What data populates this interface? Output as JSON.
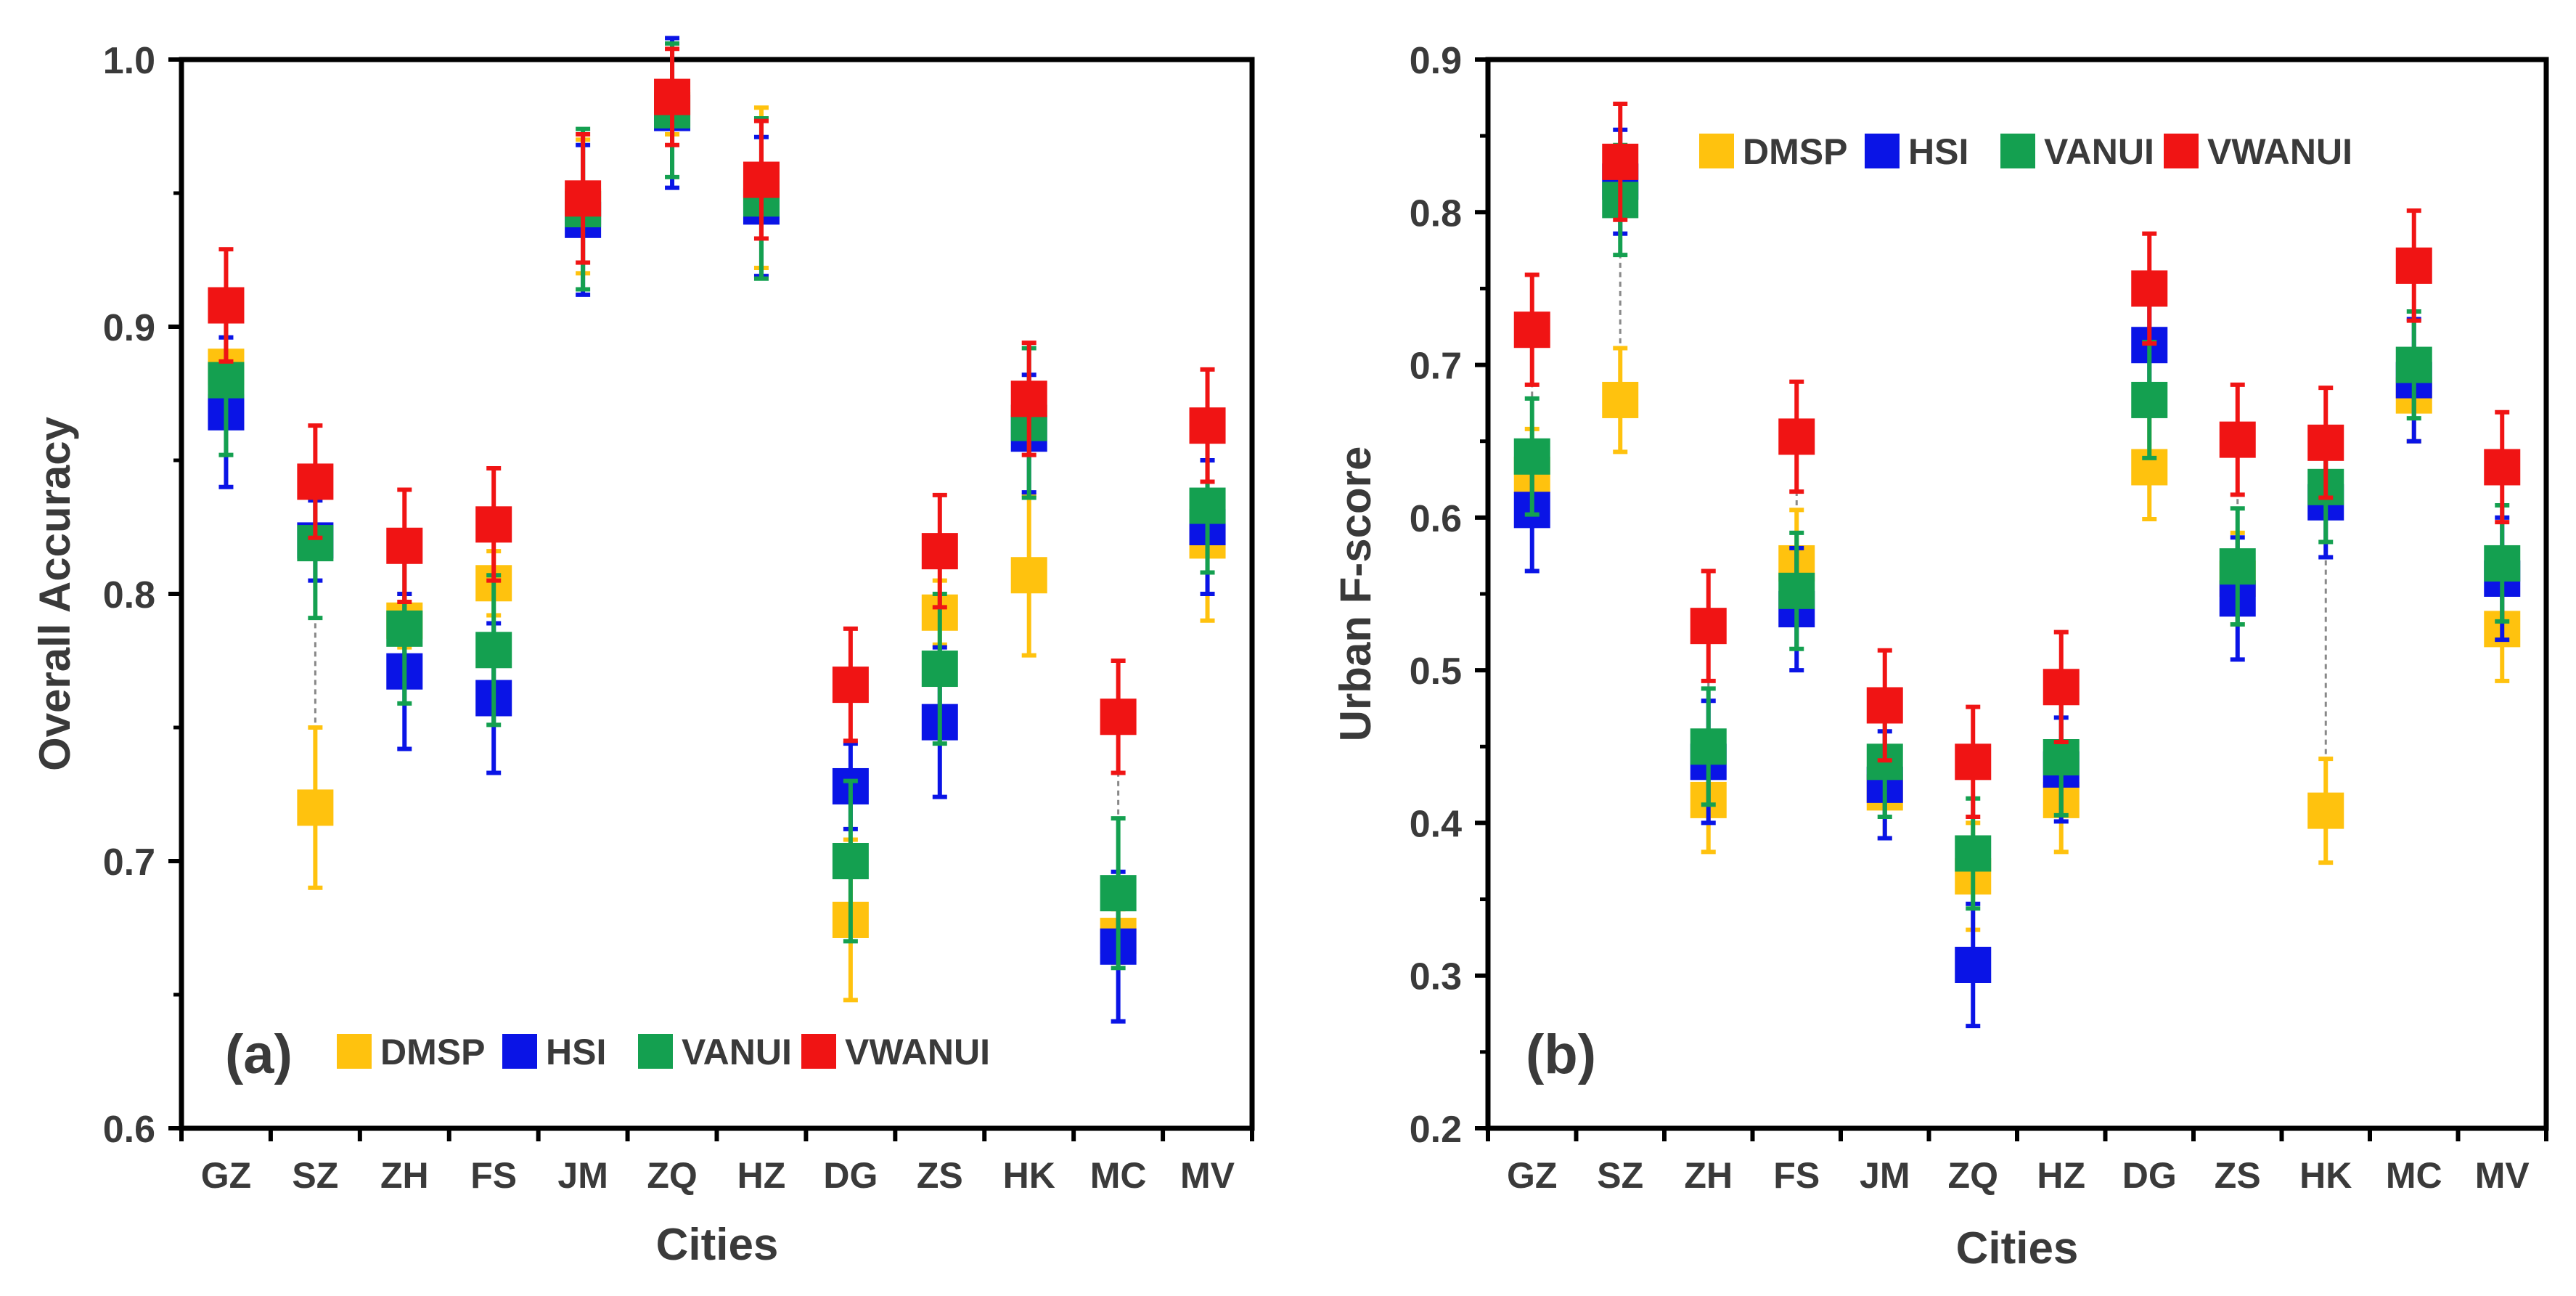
{
  "colors": {
    "DMSP": "#FFC20E",
    "HSI": "#0A14E6",
    "VANUI": "#14A050",
    "VWANUI": "#F01414",
    "axis": "#000000",
    "text": "#3a3a3a",
    "connector": "#888888"
  },
  "chart_data": [
    {
      "type": "scatter",
      "panel_label": "(a)",
      "xlabel": "Cities",
      "ylabel": "Overall Accuracy",
      "ylim": [
        0.6,
        1.0
      ],
      "ytick_values": [
        0.6,
        0.7,
        0.8,
        0.9,
        1.0
      ],
      "ytick_labels": [
        "0.6",
        "0.7",
        "0.8",
        "0.9",
        "1.0"
      ],
      "legend_position": "bottom-center",
      "categories": [
        "GZ",
        "SZ",
        "ZH",
        "FS",
        "JM",
        "ZQ",
        "HZ",
        "DG",
        "ZS",
        "HK",
        "MC",
        "MV"
      ],
      "series": [
        {
          "name": "DMSP",
          "values": [
            0.885,
            0.72,
            0.79,
            0.804,
            0.945,
            0.982,
            0.952,
            0.678,
            0.793,
            0.807,
            0.672,
            0.82
          ],
          "err": [
            0.02,
            0.03,
            0.01,
            0.012,
            0.025,
            0.01,
            0.03,
            0.03,
            0.012,
            0.03,
            0.01,
            0.03
          ]
        },
        {
          "name": "HSI",
          "values": [
            0.868,
            0.82,
            0.771,
            0.761,
            0.94,
            0.98,
            0.945,
            0.728,
            0.752,
            0.86,
            0.668,
            0.825
          ],
          "err": [
            0.028,
            0.015,
            0.029,
            0.028,
            0.028,
            0.028,
            0.026,
            0.016,
            0.028,
            0.022,
            0.028,
            0.025
          ]
        },
        {
          "name": "VANUI",
          "values": [
            0.88,
            0.819,
            0.787,
            0.779,
            0.944,
            0.981,
            0.948,
            0.7,
            0.772,
            0.864,
            0.688,
            0.833
          ],
          "err": [
            0.028,
            0.028,
            0.028,
            0.028,
            0.03,
            0.025,
            0.03,
            0.03,
            0.028,
            0.028,
            0.028,
            0.025
          ]
        },
        {
          "name": "VWANUI",
          "values": [
            0.908,
            0.842,
            0.818,
            0.826,
            0.948,
            0.986,
            0.955,
            0.766,
            0.816,
            0.873,
            0.754,
            0.863
          ],
          "err": [
            0.021,
            0.021,
            0.021,
            0.021,
            0.024,
            0.018,
            0.022,
            0.021,
            0.021,
            0.021,
            0.021,
            0.021
          ]
        }
      ]
    },
    {
      "type": "scatter",
      "panel_label": "(b)",
      "xlabel": "Cities",
      "ylabel": "Urban F-score",
      "ylim": [
        0.2,
        0.9
      ],
      "ytick_values": [
        0.2,
        0.3,
        0.4,
        0.5,
        0.6,
        0.7,
        0.8,
        0.9
      ],
      "ytick_labels": [
        "0.2",
        "0.3",
        "0.4",
        "0.5",
        "0.6",
        "0.7",
        "0.8",
        "0.9"
      ],
      "legend_position": "top-center",
      "categories": [
        "GZ",
        "SZ",
        "ZH",
        "FS",
        "JM",
        "ZQ",
        "HZ",
        "DG",
        "ZS",
        "HK",
        "MC",
        "MV"
      ],
      "series": [
        {
          "name": "DMSP",
          "values": [
            0.628,
            0.677,
            0.415,
            0.57,
            0.42,
            0.365,
            0.415,
            0.633,
            0.56,
            0.408,
            0.68,
            0.527
          ],
          "err": [
            0.03,
            0.034,
            0.034,
            0.035,
            0.03,
            0.035,
            0.034,
            0.034,
            0.03,
            0.034,
            0.03,
            0.034
          ]
        },
        {
          "name": "HSI",
          "values": [
            0.605,
            0.82,
            0.44,
            0.54,
            0.425,
            0.307,
            0.435,
            0.713,
            0.547,
            0.61,
            0.69,
            0.56
          ],
          "err": [
            0.04,
            0.034,
            0.04,
            0.04,
            0.035,
            0.04,
            0.034,
            0.04,
            0.04,
            0.036,
            0.04,
            0.04
          ]
        },
        {
          "name": "VANUI",
          "values": [
            0.64,
            0.808,
            0.45,
            0.552,
            0.44,
            0.38,
            0.443,
            0.677,
            0.568,
            0.62,
            0.7,
            0.57
          ],
          "err": [
            0.038,
            0.036,
            0.038,
            0.038,
            0.036,
            0.036,
            0.038,
            0.038,
            0.038,
            0.036,
            0.035,
            0.038
          ]
        },
        {
          "name": "VWANUI",
          "values": [
            0.723,
            0.833,
            0.529,
            0.653,
            0.477,
            0.44,
            0.489,
            0.75,
            0.651,
            0.649,
            0.765,
            0.633
          ],
          "err": [
            0.036,
            0.038,
            0.036,
            0.036,
            0.036,
            0.036,
            0.036,
            0.036,
            0.036,
            0.036,
            0.036,
            0.036
          ]
        }
      ]
    }
  ]
}
